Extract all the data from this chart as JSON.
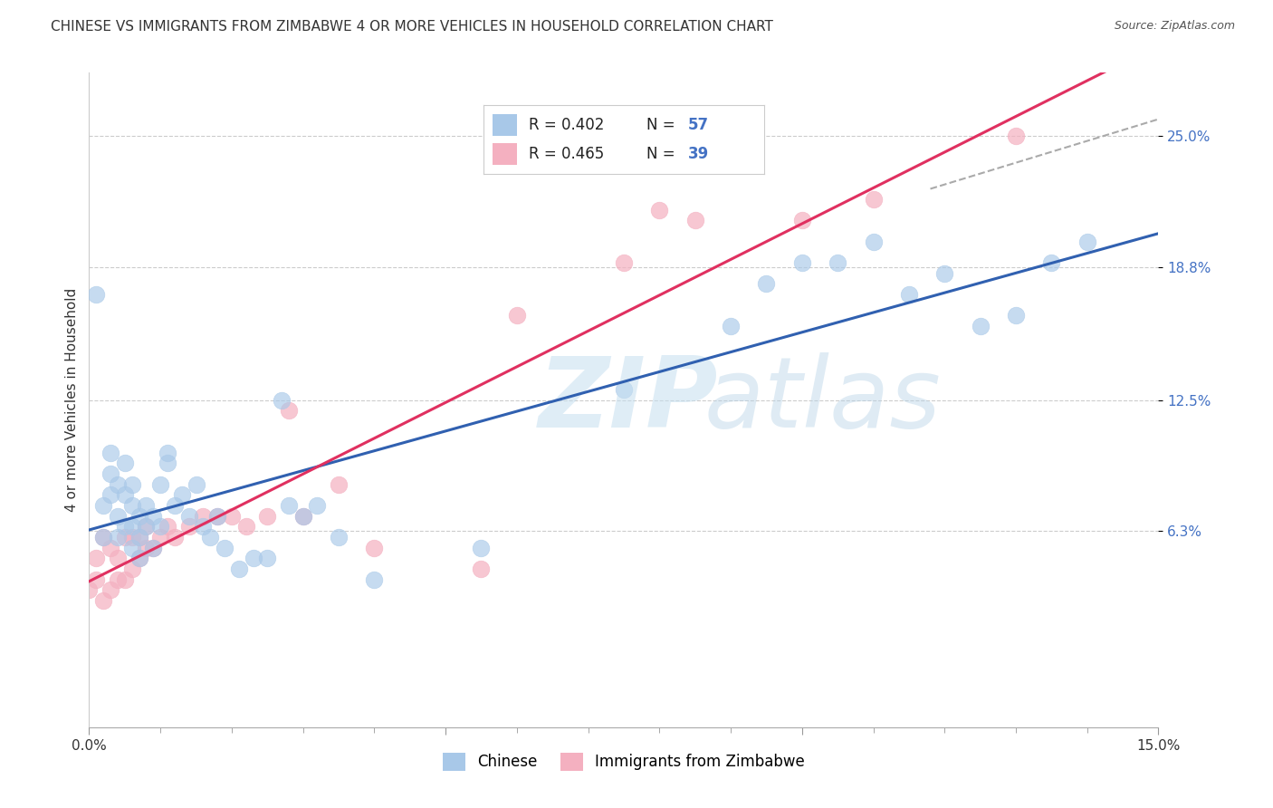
{
  "title": "CHINESE VS IMMIGRANTS FROM ZIMBABWE 4 OR MORE VEHICLES IN HOUSEHOLD CORRELATION CHART",
  "source": "Source: ZipAtlas.com",
  "ylabel": "4 or more Vehicles in Household",
  "xlim": [
    0.0,
    0.15
  ],
  "ylim": [
    -0.03,
    0.28
  ],
  "xticks": [
    0.0,
    0.05,
    0.1,
    0.15
  ],
  "xticklabels": [
    "0.0%",
    "",
    "",
    "15.0%"
  ],
  "ytick_vals": [
    0.063,
    0.125,
    0.188,
    0.25
  ],
  "ytick_labels": [
    "6.3%",
    "12.5%",
    "18.8%",
    "25.0%"
  ],
  "blue_color": "#a8c8e8",
  "pink_color": "#f4b0c0",
  "blue_line_color": "#3060b0",
  "pink_line_color": "#e03060",
  "chinese_x": [
    0.001,
    0.002,
    0.002,
    0.003,
    0.003,
    0.003,
    0.004,
    0.004,
    0.004,
    0.005,
    0.005,
    0.005,
    0.006,
    0.006,
    0.006,
    0.006,
    0.007,
    0.007,
    0.007,
    0.008,
    0.008,
    0.009,
    0.009,
    0.01,
    0.01,
    0.011,
    0.011,
    0.012,
    0.013,
    0.014,
    0.015,
    0.016,
    0.017,
    0.018,
    0.019,
    0.021,
    0.023,
    0.025,
    0.027,
    0.028,
    0.03,
    0.032,
    0.035,
    0.04,
    0.055,
    0.075,
    0.09,
    0.095,
    0.1,
    0.105,
    0.11,
    0.115,
    0.12,
    0.125,
    0.13,
    0.135,
    0.14
  ],
  "chinese_y": [
    0.175,
    0.075,
    0.06,
    0.08,
    0.09,
    0.1,
    0.06,
    0.07,
    0.085,
    0.065,
    0.08,
    0.095,
    0.055,
    0.065,
    0.075,
    0.085,
    0.05,
    0.06,
    0.07,
    0.065,
    0.075,
    0.055,
    0.07,
    0.065,
    0.085,
    0.095,
    0.1,
    0.075,
    0.08,
    0.07,
    0.085,
    0.065,
    0.06,
    0.07,
    0.055,
    0.045,
    0.05,
    0.05,
    0.125,
    0.075,
    0.07,
    0.075,
    0.06,
    0.04,
    0.055,
    0.13,
    0.16,
    0.18,
    0.19,
    0.19,
    0.2,
    0.175,
    0.185,
    0.16,
    0.165,
    0.19,
    0.2
  ],
  "zimb_x": [
    0.0,
    0.001,
    0.001,
    0.002,
    0.002,
    0.003,
    0.003,
    0.004,
    0.004,
    0.005,
    0.005,
    0.006,
    0.006,
    0.007,
    0.007,
    0.008,
    0.008,
    0.009,
    0.01,
    0.011,
    0.012,
    0.014,
    0.016,
    0.018,
    0.02,
    0.022,
    0.025,
    0.028,
    0.03,
    0.035,
    0.04,
    0.055,
    0.06,
    0.075,
    0.08,
    0.085,
    0.1,
    0.11,
    0.13
  ],
  "zimb_y": [
    0.035,
    0.04,
    0.05,
    0.03,
    0.06,
    0.035,
    0.055,
    0.04,
    0.05,
    0.04,
    0.06,
    0.045,
    0.06,
    0.05,
    0.06,
    0.055,
    0.065,
    0.055,
    0.06,
    0.065,
    0.06,
    0.065,
    0.07,
    0.07,
    0.07,
    0.065,
    0.07,
    0.12,
    0.07,
    0.085,
    0.055,
    0.045,
    0.165,
    0.19,
    0.215,
    0.21,
    0.21,
    0.22,
    0.25
  ],
  "title_fontsize": 11,
  "axis_label_fontsize": 11,
  "tick_fontsize": 11
}
